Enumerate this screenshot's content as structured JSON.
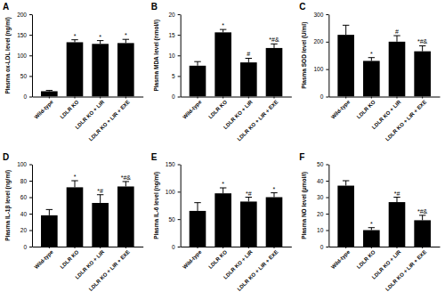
{
  "chart_data": [
    {
      "type": "bar",
      "title": "A",
      "y_label": "Plasma ox-LDL level (ng/ml)",
      "color": "#000000",
      "categories": [
        "Wild-type",
        "LDLR KO",
        "LDLR KO + LIR",
        "LDLR KO + LIR + EXE"
      ],
      "values": [
        13,
        132,
        128,
        130
      ],
      "errors": [
        2,
        6,
        8,
        9
      ],
      "annotations": [
        null,
        "*",
        "*",
        "*"
      ],
      "ylim": [
        0,
        200
      ],
      "yticks": [
        0,
        50,
        100,
        150,
        200
      ]
    },
    {
      "type": "bar",
      "title": "B",
      "y_label": "Plasma MDA level (nmol/l)",
      "color": "#000000",
      "categories": [
        "Wild-type",
        "LDLR KO",
        "LDLR KO + LIR",
        "LDLR KO + LIR + EXE"
      ],
      "values": [
        7.5,
        15.6,
        8.3,
        11.8
      ],
      "errors": [
        1.0,
        0.7,
        1.0,
        1.0
      ],
      "annotations": [
        null,
        "*",
        "#",
        "*#&"
      ],
      "ylim": [
        0,
        20
      ],
      "yticks": [
        0,
        5,
        10,
        15,
        20
      ]
    },
    {
      "type": "bar",
      "title": "C",
      "y_label": "Plasma SOD level (U/ml)",
      "color": "#000000",
      "categories": [
        "Wild-type",
        "LDLR KO",
        "LDLR KO + LIR",
        "LDLR KO + LIR + EXE"
      ],
      "values": [
        225,
        130,
        200,
        165
      ],
      "errors": [
        35,
        12,
        22,
        20
      ],
      "annotations": [
        null,
        "*",
        "#",
        "*#&"
      ],
      "ylim": [
        0,
        300
      ],
      "yticks": [
        0,
        100,
        200,
        300
      ]
    },
    {
      "type": "bar",
      "title": "D",
      "y_label": "Plasma IL-1β level (ng/ml)",
      "color": "#000000",
      "categories": [
        "Wild-type",
        "LDLR KO",
        "LDLR KO + LIR",
        "LDLR KO + LIR + EXE"
      ],
      "values": [
        38,
        72,
        53,
        73
      ],
      "errors": [
        7,
        8,
        10,
        6
      ],
      "annotations": [
        null,
        "*",
        "*#",
        "*#&"
      ],
      "ylim": [
        0,
        100
      ],
      "yticks": [
        0,
        20,
        40,
        60,
        80,
        100
      ]
    },
    {
      "type": "bar",
      "title": "E",
      "y_label": "Plasma IL-6 level (ng/ml)",
      "color": "#000000",
      "categories": [
        "Wild-type",
        "LDLR KO",
        "LDLR KO + LIR",
        "LDLR KO + LIR + EXE"
      ],
      "values": [
        65,
        97,
        82,
        90
      ],
      "errors": [
        15,
        10,
        8,
        8
      ],
      "annotations": [
        null,
        "*",
        "*#",
        "*"
      ],
      "ylim": [
        0,
        150
      ],
      "yticks": [
        0,
        50,
        100,
        150
      ]
    },
    {
      "type": "bar",
      "title": "F",
      "y_label": "Plasma NO level (μmol/l)",
      "color": "#000000",
      "categories": [
        "Wild-type",
        "LDLR KO",
        "LDLR KO + LIR",
        "LDLR KO + LIR + EXE"
      ],
      "values": [
        37,
        10,
        27,
        16
      ],
      "errors": [
        3,
        1.5,
        3,
        3
      ],
      "annotations": [
        null,
        "*",
        "*#",
        "*#&"
      ],
      "ylim": [
        0,
        50
      ],
      "yticks": [
        0,
        10,
        20,
        30,
        40,
        50
      ]
    }
  ]
}
